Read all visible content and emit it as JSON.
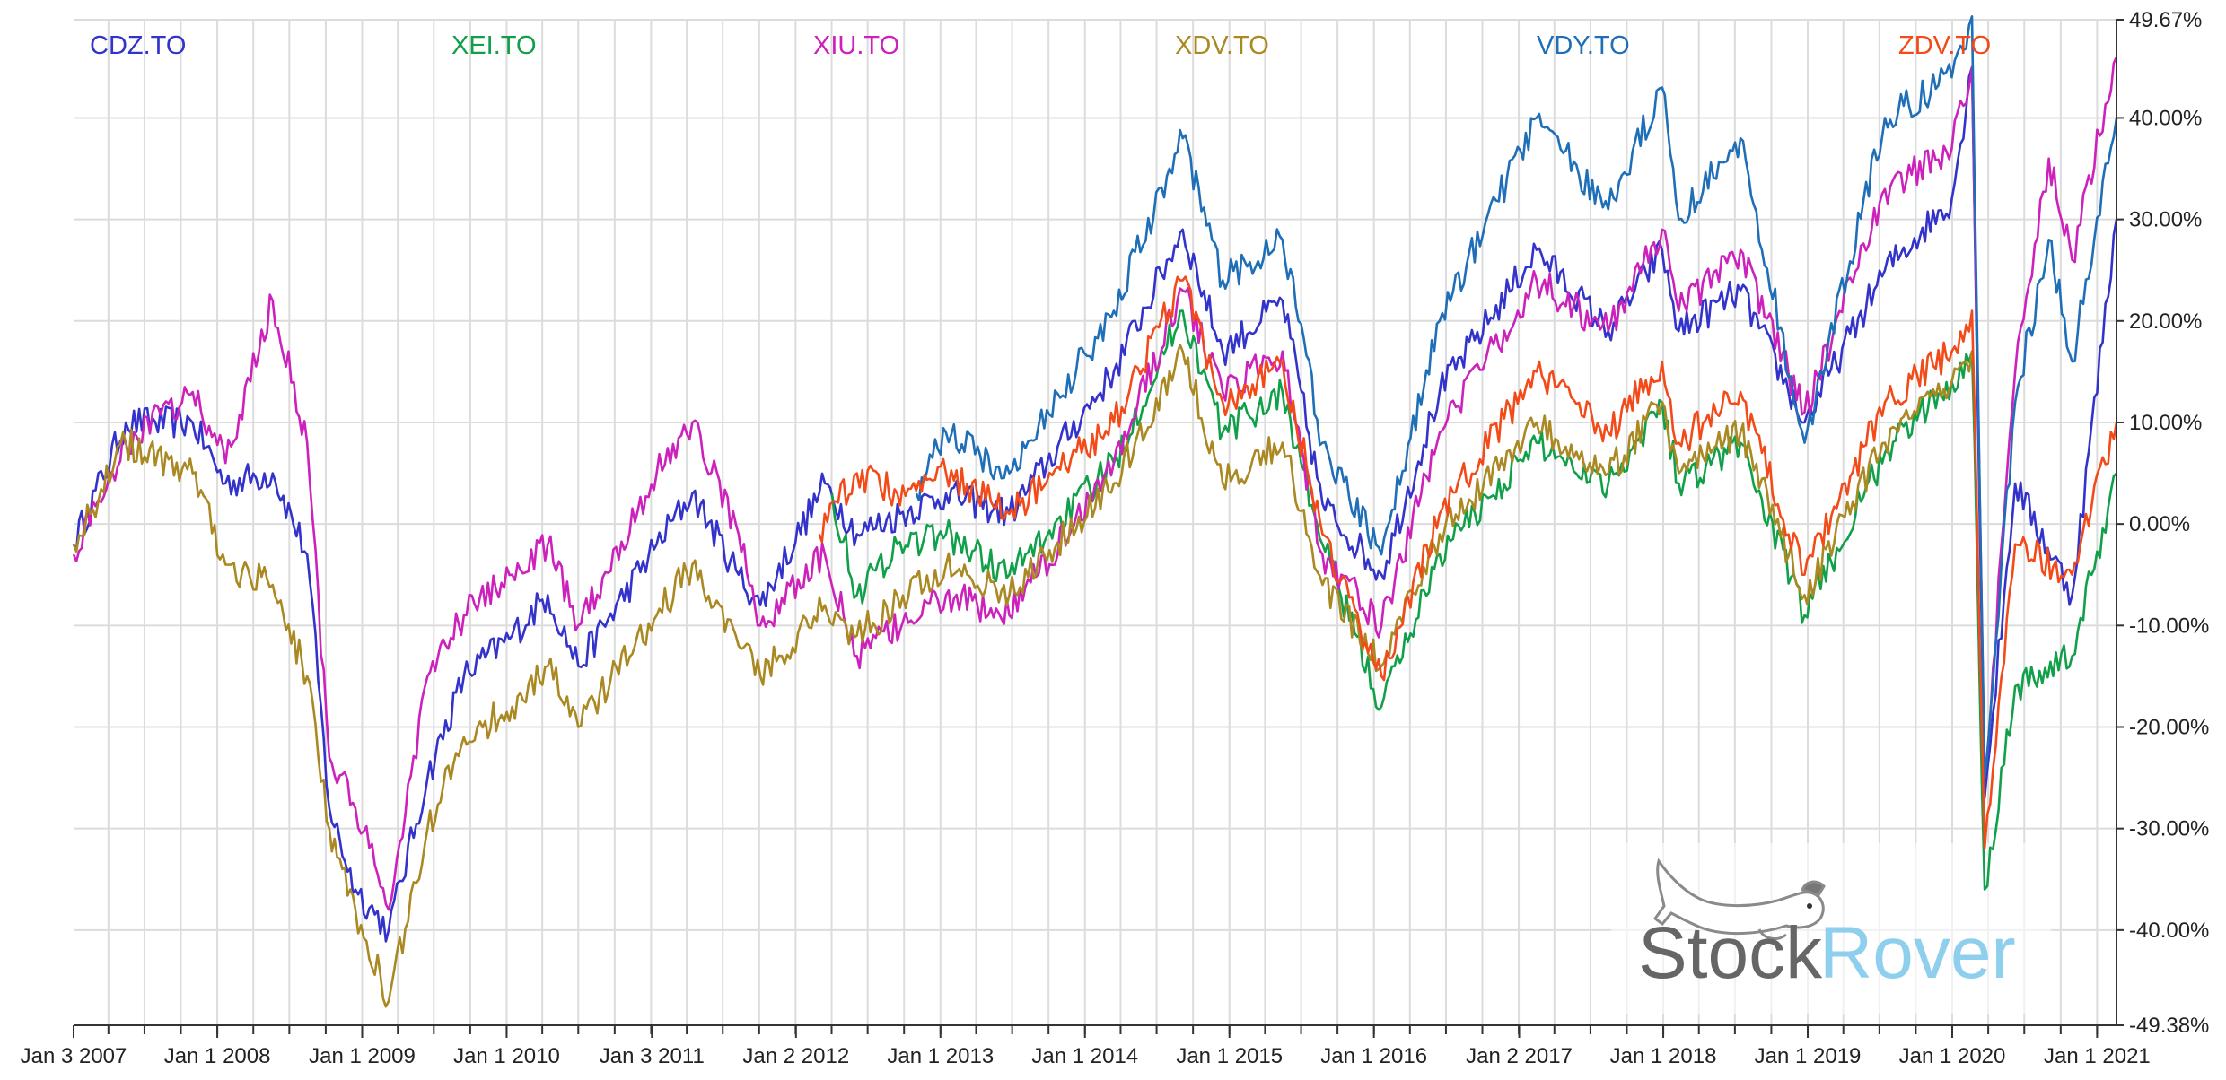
{
  "chart_data": {
    "type": "line",
    "title": "",
    "xlabel": "",
    "ylabel": "",
    "x_start": "2007-01-03",
    "x_end": "2021-02-19",
    "ylim": [
      -49.38,
      49.67
    ],
    "y_tick_labels": [
      "49.67%",
      "40.00%",
      "30.00%",
      "20.00%",
      "10.00%",
      "0.00%",
      "-10.00%",
      "-20.00%",
      "-30.00%",
      "-40.00%",
      "-49.38%"
    ],
    "y_tick_values": [
      49.67,
      40,
      30,
      20,
      10,
      0,
      -10,
      -20,
      -30,
      -40,
      -49.38
    ],
    "x_tick_labels": [
      "Jan 3 2007",
      "Jan 1 2008",
      "Jan 1 2009",
      "Jan 1 2010",
      "Jan 3 2011",
      "Jan 2 2012",
      "Jan 1 2013",
      "Jan 1 2014",
      "Jan 1 2015",
      "Jan 1 2016",
      "Jan 2 2017",
      "Jan 1 2018",
      "Jan 1 2019",
      "Jan 1 2020",
      "Jan 1 2021"
    ],
    "x_tick_dates": [
      "2007-01-03",
      "2008-01-01",
      "2009-01-01",
      "2010-01-01",
      "2011-01-03",
      "2012-01-02",
      "2013-01-01",
      "2014-01-01",
      "2015-01-01",
      "2016-01-01",
      "2017-01-02",
      "2018-01-01",
      "2019-01-01",
      "2020-01-01",
      "2021-01-01"
    ],
    "grid": true,
    "legend_position": "top",
    "series": [
      {
        "name": "CDZ.TO",
        "color": "#3333cc",
        "points": [
          [
            "2007-01-03",
            -2
          ],
          [
            "2007-05-15",
            10
          ],
          [
            "2007-10-31",
            10
          ],
          [
            "2008-01-22",
            4
          ],
          [
            "2008-05-20",
            5
          ],
          [
            "2008-08-15",
            -3
          ],
          [
            "2008-10-10",
            -28
          ],
          [
            "2008-12-15",
            -36
          ],
          [
            "2009-03-09",
            -40
          ],
          [
            "2009-06-15",
            -25
          ],
          [
            "2009-09-15",
            -15
          ],
          [
            "2010-01-15",
            -11
          ],
          [
            "2010-04-15",
            -7
          ],
          [
            "2010-07-01",
            -14
          ],
          [
            "2011-01-15",
            -2
          ],
          [
            "2011-04-15",
            3
          ],
          [
            "2011-08-10",
            -5
          ],
          [
            "2011-10-04",
            -8
          ],
          [
            "2012-03-15",
            4
          ],
          [
            "2012-06-04",
            -1
          ],
          [
            "2013-01-15",
            3
          ],
          [
            "2013-06-24",
            1
          ],
          [
            "2014-03-15",
            15
          ],
          [
            "2014-09-05",
            29
          ],
          [
            "2014-12-15",
            17
          ],
          [
            "2015-05-15",
            22
          ],
          [
            "2015-08-24",
            2
          ],
          [
            "2016-01-20",
            -5
          ],
          [
            "2016-06-15",
            13
          ],
          [
            "2017-02-15",
            27
          ],
          [
            "2017-08-15",
            19
          ],
          [
            "2017-12-29",
            27
          ],
          [
            "2018-02-09",
            19
          ],
          [
            "2018-07-15",
            23
          ],
          [
            "2018-12-24",
            10
          ],
          [
            "2019-07-15",
            25
          ],
          [
            "2019-12-31",
            32
          ],
          [
            "2020-02-20",
            45
          ],
          [
            "2020-03-23",
            -27
          ],
          [
            "2020-06-08",
            4
          ],
          [
            "2020-10-30",
            -7
          ],
          [
            "2021-02-19",
            30
          ]
        ]
      },
      {
        "name": "XEI.TO",
        "color": "#11a04a",
        "points": [
          [
            "2012-04-02",
            3
          ],
          [
            "2012-06-04",
            -7
          ],
          [
            "2012-09-14",
            -2
          ],
          [
            "2013-01-15",
            -1
          ],
          [
            "2013-06-24",
            -5
          ],
          [
            "2014-03-15",
            6
          ],
          [
            "2014-09-05",
            21
          ],
          [
            "2014-12-15",
            9
          ],
          [
            "2015-05-15",
            13
          ],
          [
            "2015-08-24",
            -2
          ],
          [
            "2016-01-20",
            -18
          ],
          [
            "2016-06-15",
            -3
          ],
          [
            "2017-02-15",
            8
          ],
          [
            "2017-08-15",
            4
          ],
          [
            "2017-12-29",
            12
          ],
          [
            "2018-02-09",
            4
          ],
          [
            "2018-07-15",
            8
          ],
          [
            "2018-12-24",
            -9
          ],
          [
            "2019-07-15",
            7
          ],
          [
            "2019-12-31",
            14
          ],
          [
            "2020-02-20",
            17
          ],
          [
            "2020-03-23",
            -36
          ],
          [
            "2020-06-08",
            -16
          ],
          [
            "2020-10-30",
            -13
          ],
          [
            "2021-02-19",
            5
          ]
        ]
      },
      {
        "name": "XIU.TO",
        "color": "#cc22bb",
        "points": [
          [
            "2007-01-03",
            -3
          ],
          [
            "2007-05-15",
            8
          ],
          [
            "2007-10-31",
            13
          ],
          [
            "2008-01-22",
            6
          ],
          [
            "2008-05-20",
            22
          ],
          [
            "2008-08-15",
            8
          ],
          [
            "2008-10-10",
            -23
          ],
          [
            "2008-12-15",
            -28
          ],
          [
            "2009-03-09",
            -38
          ],
          [
            "2009-06-15",
            -15
          ],
          [
            "2009-09-15",
            -9
          ],
          [
            "2010-01-15",
            -5
          ],
          [
            "2010-04-15",
            -2
          ],
          [
            "2010-07-01",
            -10
          ],
          [
            "2011-01-15",
            5
          ],
          [
            "2011-04-15",
            10
          ],
          [
            "2011-08-10",
            -1
          ],
          [
            "2011-10-04",
            -10
          ],
          [
            "2012-03-15",
            -3
          ],
          [
            "2012-06-04",
            -13
          ],
          [
            "2013-01-15",
            -7
          ],
          [
            "2013-06-24",
            -9
          ],
          [
            "2014-03-15",
            6
          ],
          [
            "2014-09-05",
            23
          ],
          [
            "2014-12-15",
            13
          ],
          [
            "2015-05-15",
            17
          ],
          [
            "2015-08-24",
            -3
          ],
          [
            "2016-01-20",
            -10
          ],
          [
            "2016-06-15",
            9
          ],
          [
            "2017-02-15",
            24
          ],
          [
            "2017-08-15",
            19
          ],
          [
            "2017-12-29",
            29
          ],
          [
            "2018-02-09",
            21
          ],
          [
            "2018-07-15",
            27
          ],
          [
            "2018-12-24",
            11
          ],
          [
            "2019-07-15",
            33
          ],
          [
            "2019-12-31",
            37
          ],
          [
            "2020-02-20",
            45
          ],
          [
            "2020-03-23",
            -25
          ],
          [
            "2020-06-08",
            15
          ],
          [
            "2020-09-01",
            36
          ],
          [
            "2020-10-30",
            26
          ],
          [
            "2021-02-19",
            46
          ]
        ]
      },
      {
        "name": "XDV.TO",
        "color": "#aa8822",
        "points": [
          [
            "2007-01-03",
            -2
          ],
          [
            "2007-05-15",
            8
          ],
          [
            "2007-10-31",
            5
          ],
          [
            "2008-01-22",
            -4
          ],
          [
            "2008-05-20",
            -6
          ],
          [
            "2008-08-15",
            -15
          ],
          [
            "2008-10-10",
            -30
          ],
          [
            "2008-12-15",
            -38
          ],
          [
            "2009-03-09",
            -47
          ],
          [
            "2009-06-15",
            -30
          ],
          [
            "2009-09-15",
            -21
          ],
          [
            "2010-01-15",
            -18
          ],
          [
            "2010-04-15",
            -14
          ],
          [
            "2010-07-01",
            -20
          ],
          [
            "2011-01-15",
            -9
          ],
          [
            "2011-04-15",
            -4
          ],
          [
            "2011-08-10",
            -12
          ],
          [
            "2011-10-04",
            -15
          ],
          [
            "2012-03-15",
            -8
          ],
          [
            "2012-06-04",
            -11
          ],
          [
            "2013-01-15",
            -4
          ],
          [
            "2013-06-24",
            -7
          ],
          [
            "2014-03-15",
            4
          ],
          [
            "2014-09-05",
            17
          ],
          [
            "2014-12-15",
            4
          ],
          [
            "2015-05-15",
            8
          ],
          [
            "2015-08-24",
            -6
          ],
          [
            "2016-01-20",
            -14
          ],
          [
            "2016-06-15",
            -1
          ],
          [
            "2017-02-15",
            10
          ],
          [
            "2017-08-15",
            5
          ],
          [
            "2017-12-29",
            12
          ],
          [
            "2018-02-09",
            5
          ],
          [
            "2018-07-15",
            9
          ],
          [
            "2018-12-24",
            -7
          ],
          [
            "2019-07-15",
            8
          ],
          [
            "2019-12-31",
            14
          ],
          [
            "2020-02-20",
            17
          ]
        ]
      },
      {
        "name": "VDY.TO",
        "color": "#1f6eb8",
        "points": [
          [
            "2012-11-01",
            3
          ],
          [
            "2013-01-15",
            9
          ],
          [
            "2013-06-24",
            5
          ],
          [
            "2014-03-15",
            21
          ],
          [
            "2014-09-05",
            38
          ],
          [
            "2014-12-15",
            24
          ],
          [
            "2015-05-15",
            28
          ],
          [
            "2015-08-24",
            8
          ],
          [
            "2016-01-20",
            -3
          ],
          [
            "2016-06-15",
            20
          ],
          [
            "2017-02-15",
            40
          ],
          [
            "2017-08-15",
            31
          ],
          [
            "2017-12-29",
            43
          ],
          [
            "2018-02-09",
            30
          ],
          [
            "2018-07-15",
            38
          ],
          [
            "2018-12-24",
            8
          ],
          [
            "2019-07-15",
            40
          ],
          [
            "2019-12-31",
            44
          ],
          [
            "2020-02-20",
            50
          ],
          [
            "2020-03-23",
            -25
          ],
          [
            "2020-06-08",
            12
          ],
          [
            "2020-09-01",
            28
          ],
          [
            "2020-10-30",
            16
          ],
          [
            "2021-02-19",
            40
          ]
        ]
      },
      {
        "name": "ZDV.TO",
        "color": "#f24a18",
        "points": [
          [
            "2012-03-01",
            -1
          ],
          [
            "2012-06-04",
            5
          ],
          [
            "2012-09-14",
            3
          ],
          [
            "2013-01-15",
            5
          ],
          [
            "2013-06-24",
            1
          ],
          [
            "2014-03-15",
            10
          ],
          [
            "2014-09-05",
            24
          ],
          [
            "2014-12-15",
            12
          ],
          [
            "2015-05-15",
            16
          ],
          [
            "2015-08-24",
            -1
          ],
          [
            "2016-01-20",
            -15
          ],
          [
            "2016-06-15",
            1
          ],
          [
            "2017-02-15",
            15
          ],
          [
            "2017-08-15",
            9
          ],
          [
            "2017-12-29",
            16
          ],
          [
            "2018-02-09",
            8
          ],
          [
            "2018-07-15",
            13
          ],
          [
            "2018-12-24",
            -5
          ],
          [
            "2019-07-15",
            12
          ],
          [
            "2019-12-31",
            17
          ],
          [
            "2020-02-20",
            21
          ],
          [
            "2020-03-23",
            -32
          ],
          [
            "2020-06-08",
            -2
          ],
          [
            "2020-10-30",
            -5
          ],
          [
            "2021-02-19",
            10
          ]
        ]
      }
    ]
  },
  "watermark": {
    "part1": "Stock",
    "part2": "Rover"
  }
}
